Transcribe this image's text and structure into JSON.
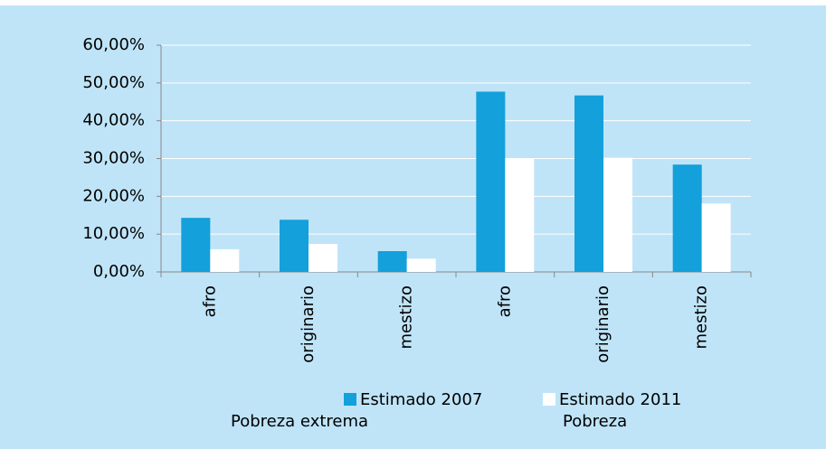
{
  "chart_data": {
    "type": "bar",
    "categories": [
      "afro",
      "originario",
      "mestizo",
      "afro",
      "originario",
      "mestizo"
    ],
    "group_labels": [
      "Pobreza extrema",
      "Pobreza"
    ],
    "series": [
      {
        "name": "Estimado 2007",
        "color": "#13a0db",
        "values": [
          14.3,
          13.8,
          5.5,
          47.7,
          46.7,
          28.4
        ]
      },
      {
        "name": "Estimado 2011",
        "color": "#ffffff",
        "values": [
          6.0,
          7.4,
          3.5,
          30.0,
          30.2,
          18.1
        ]
      }
    ],
    "ylim": [
      0,
      60
    ],
    "yticks": [
      {
        "value": 0,
        "label": "0,00%"
      },
      {
        "value": 10,
        "label": "10,00%"
      },
      {
        "value": 20,
        "label": "20,00%"
      },
      {
        "value": 30,
        "label": "30,00%"
      },
      {
        "value": 40,
        "label": "40,00%"
      },
      {
        "value": 50,
        "label": "50,00%"
      },
      {
        "value": 60,
        "label": "60,00%"
      }
    ],
    "grid": true
  }
}
